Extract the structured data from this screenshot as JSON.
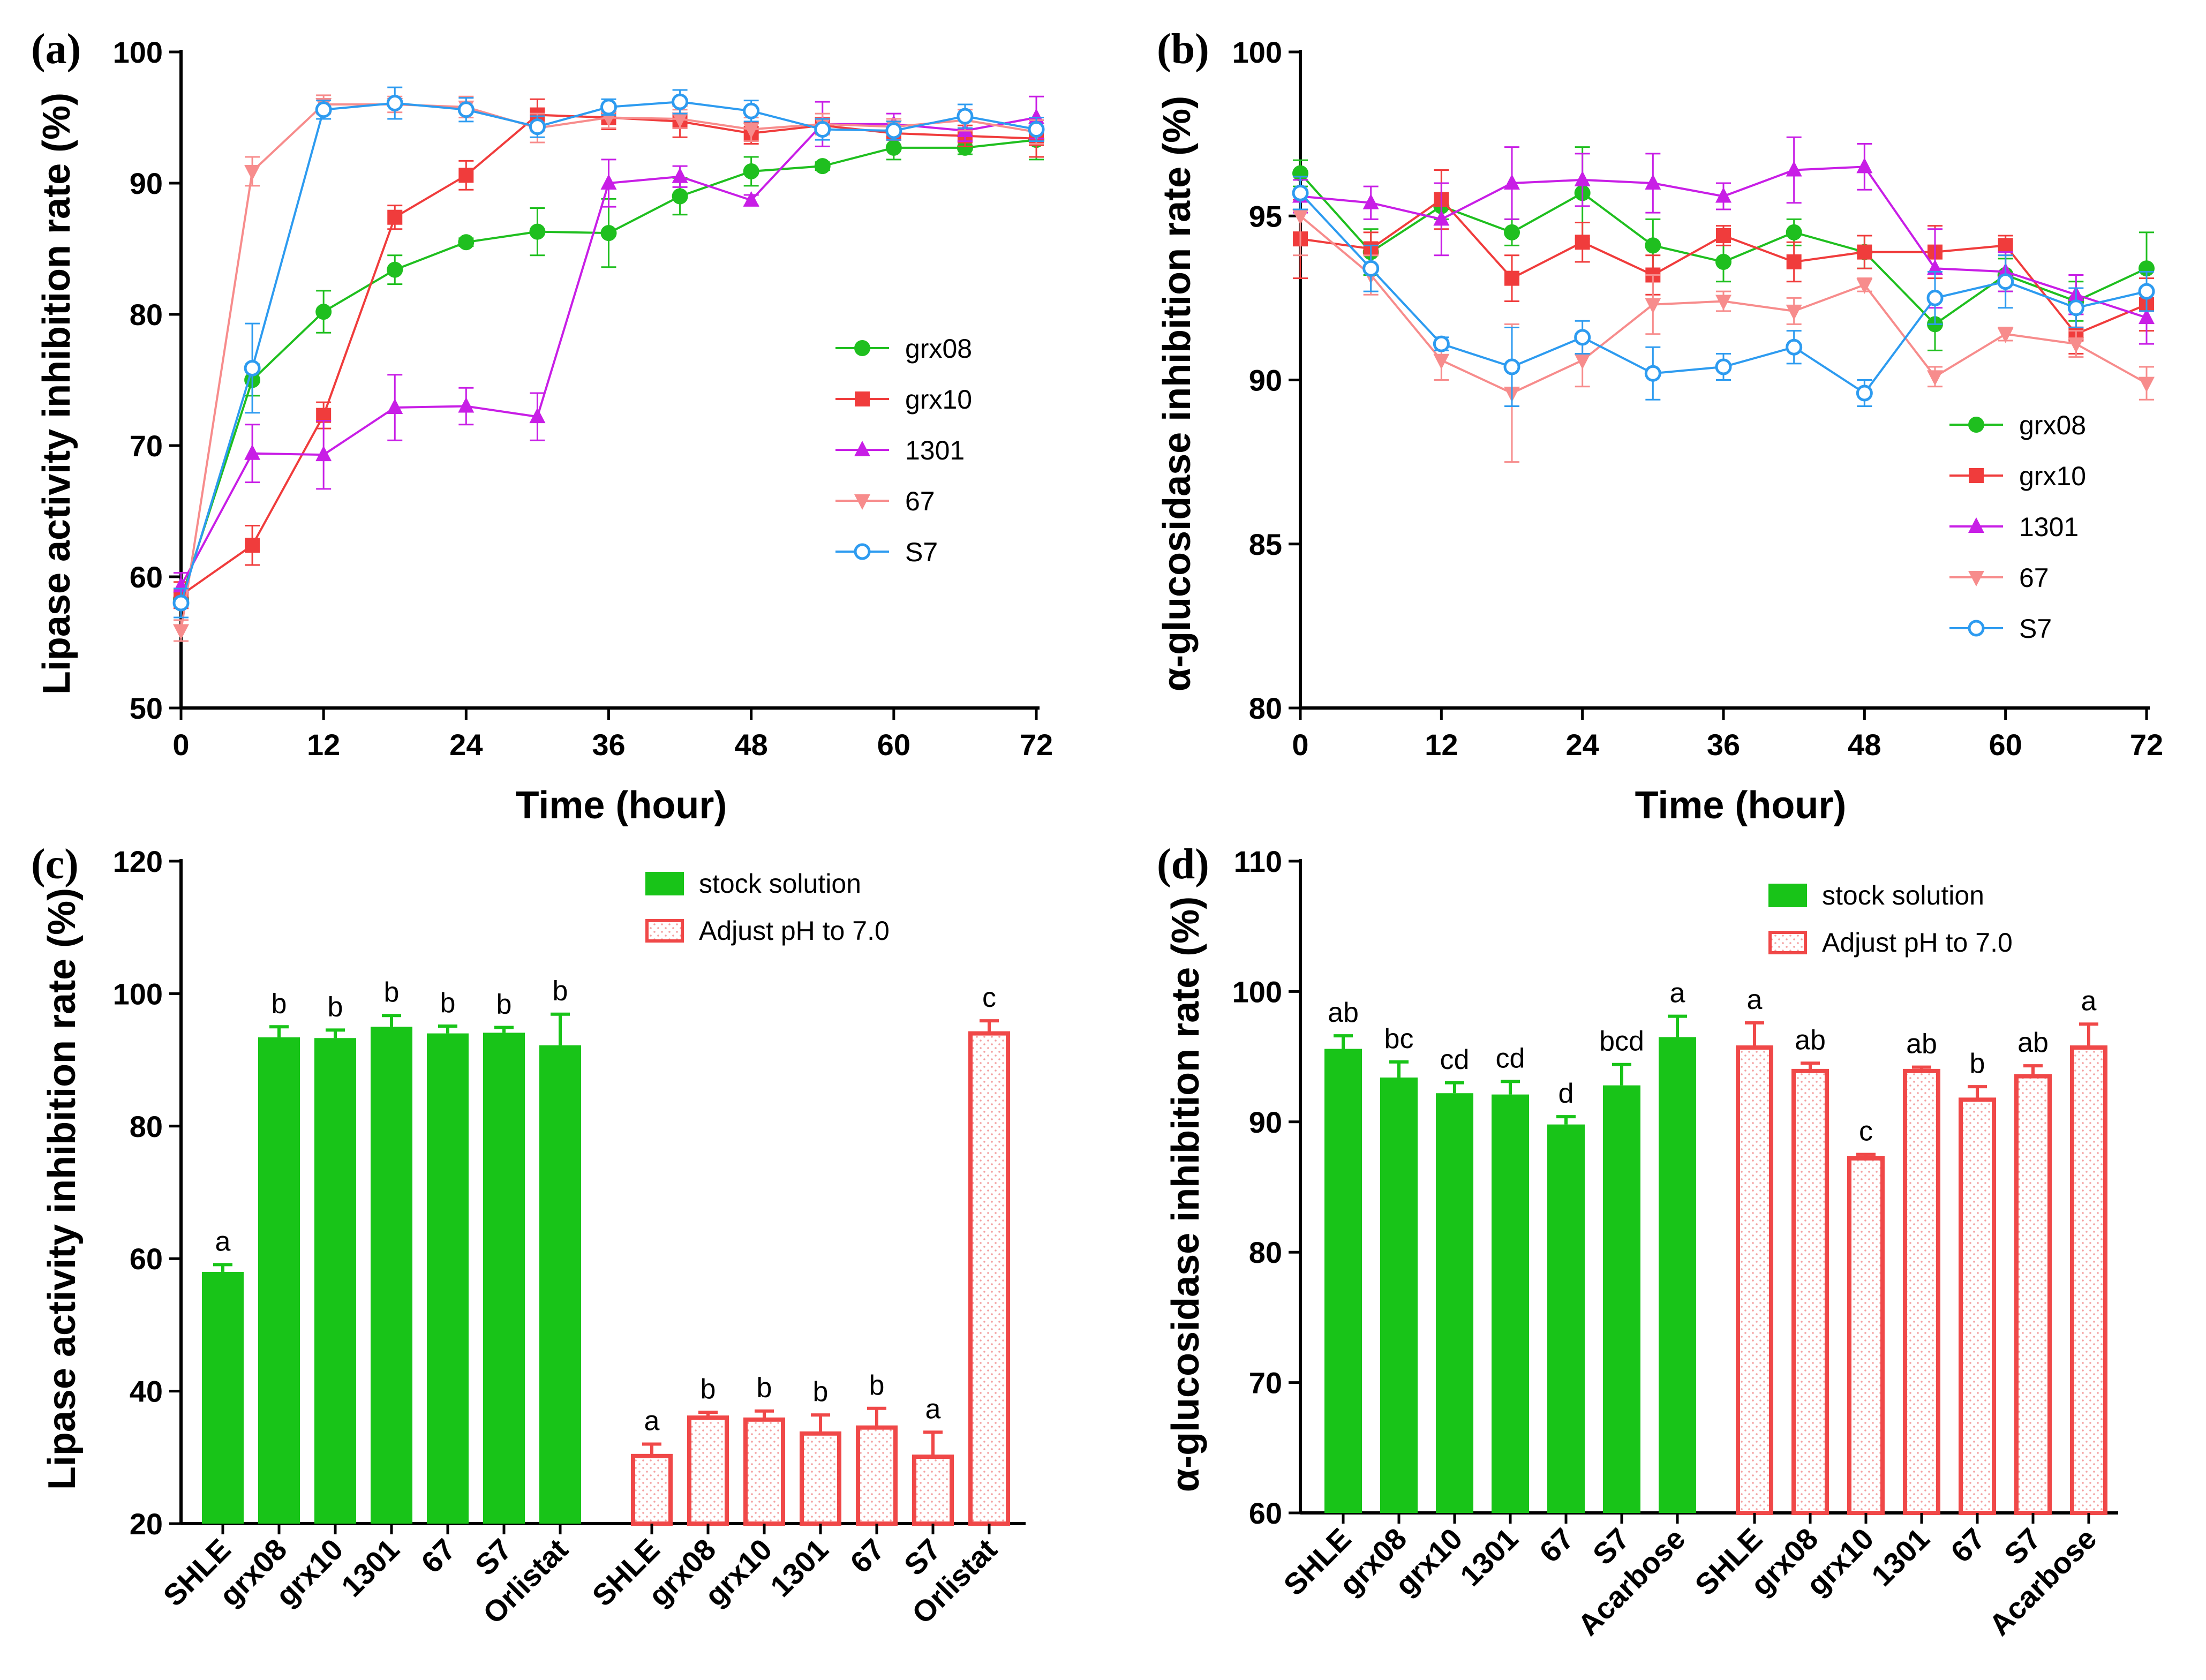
{
  "colors": {
    "grx08": "#1fbf1f",
    "grx10": "#f03c3c",
    "1301": "#c81ee6",
    "67": "#f78c8c",
    "S7": "#2d9bf0",
    "stock": "#18c418",
    "adjust": "#f04848",
    "axis": "#000000"
  },
  "chart_data": [
    {
      "panel": "(a)",
      "type": "line",
      "ylabel": "Lipase activity inhibition rate (%)",
      "xlabel": "Time (hour)",
      "ylim": [
        50,
        100
      ],
      "yticks": [
        50,
        60,
        70,
        80,
        90,
        100
      ],
      "xlim": [
        0,
        72
      ],
      "xticks": [
        0,
        12,
        24,
        36,
        48,
        60,
        72
      ],
      "legend_position": "middle-right",
      "series": [
        {
          "name": "grx08",
          "marker": "circle-filled",
          "x": [
            0,
            6,
            12,
            18,
            24,
            30,
            36,
            42,
            48,
            54,
            60,
            66,
            72
          ],
          "values": [
            58.3,
            75.0,
            80.2,
            83.4,
            85.5,
            86.3,
            86.2,
            89.0,
            90.9,
            91.3,
            92.7,
            92.7,
            93.3
          ],
          "errors": [
            0.5,
            1.2,
            1.6,
            1.1,
            0.3,
            1.8,
            2.6,
            1.4,
            1.1,
            0.3,
            0.9,
            0.5,
            1.5
          ]
        },
        {
          "name": "grx10",
          "marker": "square-filled",
          "x": [
            0,
            6,
            12,
            18,
            24,
            30,
            36,
            42,
            48,
            54,
            60,
            66,
            72
          ],
          "values": [
            58.6,
            62.4,
            72.3,
            87.4,
            90.6,
            95.2,
            95.0,
            94.7,
            93.8,
            94.4,
            93.8,
            93.6,
            93.4
          ],
          "errors": [
            1.0,
            1.5,
            1.0,
            0.9,
            1.1,
            1.2,
            0.9,
            1.2,
            0.8,
            0.6,
            0.5,
            0.8,
            1.4
          ]
        },
        {
          "name": "1301",
          "marker": "triangle-up-filled",
          "x": [
            0,
            6,
            12,
            18,
            24,
            30,
            36,
            42,
            48,
            54,
            60,
            66,
            72
          ],
          "values": [
            59.3,
            69.4,
            69.3,
            72.9,
            73.0,
            72.2,
            90.0,
            90.5,
            88.7,
            94.5,
            94.5,
            94.0,
            95.0
          ],
          "errors": [
            1.0,
            2.2,
            2.6,
            2.5,
            1.4,
            1.8,
            1.8,
            0.8,
            0.4,
            1.7,
            0.8,
            0.8,
            1.6
          ]
        },
        {
          "name": "67",
          "marker": "triangle-down-filled",
          "x": [
            0,
            6,
            12,
            18,
            24,
            30,
            36,
            42,
            48,
            54,
            60,
            66,
            72
          ],
          "values": [
            55.9,
            90.9,
            96.0,
            96.0,
            95.8,
            94.2,
            95.0,
            94.9,
            94.1,
            94.5,
            94.3,
            94.8,
            93.9
          ],
          "errors": [
            0.8,
            1.1,
            0.7,
            0.6,
            0.8,
            1.1,
            0.8,
            0.7,
            0.9,
            0.8,
            0.6,
            0.8,
            0.9
          ]
        },
        {
          "name": "S7",
          "marker": "circle-open",
          "x": [
            0,
            6,
            12,
            18,
            24,
            30,
            36,
            42,
            48,
            54,
            60,
            66,
            72
          ],
          "values": [
            58.0,
            75.9,
            95.6,
            96.1,
            95.6,
            94.3,
            95.8,
            96.2,
            95.5,
            94.1,
            94.0,
            95.1,
            94.1
          ],
          "errors": [
            1.1,
            3.4,
            0.7,
            1.2,
            0.9,
            0.8,
            0.6,
            0.9,
            0.8,
            0.8,
            0.7,
            0.9,
            0.9
          ]
        }
      ]
    },
    {
      "panel": "(b)",
      "type": "line",
      "ylabel": "α-glucosidase inhibition rate (%)",
      "xlabel": "Time (hour)",
      "ylim": [
        80,
        100
      ],
      "yticks": [
        80,
        85,
        90,
        95,
        100
      ],
      "xlim": [
        0,
        72
      ],
      "xticks": [
        0,
        12,
        24,
        36,
        48,
        60,
        72
      ],
      "legend_position": "lower-right",
      "series": [
        {
          "name": "grx08",
          "marker": "circle-filled",
          "x": [
            0,
            6,
            12,
            18,
            24,
            30,
            36,
            42,
            48,
            54,
            60,
            66,
            72
          ],
          "values": [
            96.3,
            93.9,
            95.3,
            94.5,
            95.7,
            94.1,
            93.6,
            94.5,
            93.9,
            91.7,
            93.2,
            92.4,
            93.4
          ],
          "errors": [
            0.4,
            0.7,
            0.4,
            0.4,
            1.4,
            0.8,
            0.6,
            0.4,
            0.5,
            0.8,
            0.5,
            0.6,
            1.1
          ]
        },
        {
          "name": "grx10",
          "marker": "square-filled",
          "x": [
            0,
            6,
            12,
            18,
            24,
            30,
            36,
            42,
            48,
            54,
            60,
            66,
            72
          ],
          "values": [
            94.3,
            94.0,
            95.5,
            93.1,
            94.2,
            93.2,
            94.4,
            93.6,
            93.9,
            93.9,
            94.1,
            91.4,
            92.3
          ],
          "errors": [
            1.2,
            0.5,
            0.9,
            0.7,
            0.6,
            0.6,
            0.3,
            0.6,
            0.5,
            0.8,
            0.3,
            0.6,
            0.8
          ]
        },
        {
          "name": "1301",
          "marker": "triangle-up-filled",
          "x": [
            0,
            6,
            12,
            18,
            24,
            30,
            36,
            42,
            48,
            54,
            60,
            66,
            72
          ],
          "values": [
            95.6,
            95.4,
            94.9,
            96.0,
            96.1,
            96.0,
            95.6,
            96.4,
            96.5,
            93.4,
            93.3,
            92.6,
            91.9
          ],
          "errors": [
            0.5,
            0.5,
            1.1,
            1.1,
            0.8,
            0.9,
            0.4,
            1.0,
            0.7,
            1.2,
            0.6,
            0.6,
            0.8
          ]
        },
        {
          "name": "67",
          "marker": "triangle-down-filled",
          "x": [
            0,
            6,
            12,
            18,
            24,
            30,
            36,
            42,
            48,
            54,
            60,
            66,
            72
          ],
          "values": [
            95.0,
            93.2,
            90.6,
            89.6,
            90.6,
            92.3,
            92.4,
            92.1,
            92.9,
            90.1,
            91.4,
            91.1,
            89.9
          ],
          "errors": [
            1.2,
            0.6,
            0.6,
            2.1,
            0.8,
            0.9,
            0.3,
            0.4,
            0.2,
            0.3,
            0.2,
            0.4,
            0.5
          ]
        },
        {
          "name": "S7",
          "marker": "circle-open",
          "x": [
            0,
            6,
            12,
            18,
            24,
            30,
            36,
            42,
            48,
            54,
            60,
            66,
            72
          ],
          "values": [
            95.7,
            93.4,
            91.1,
            90.4,
            91.3,
            90.2,
            90.4,
            91.0,
            89.6,
            92.5,
            93.0,
            92.2,
            92.7
          ],
          "errors": [
            0.5,
            0.7,
            0.2,
            1.2,
            0.5,
            0.8,
            0.4,
            0.5,
            0.4,
            0.8,
            0.8,
            0.6,
            0.6
          ]
        }
      ]
    },
    {
      "panel": "(c)",
      "type": "bar",
      "ylabel": "Lipase activity inhibition rate (%)",
      "ylim": [
        20,
        120
      ],
      "yticks": [
        20,
        40,
        60,
        80,
        100,
        120
      ],
      "legend_position": "top-right",
      "groups": [
        {
          "name": "stock solution",
          "style": "solid",
          "categories": [
            "SHLE",
            "grx08",
            "grx10",
            "1301",
            "67",
            "S7",
            "Orlistat"
          ],
          "values": [
            58.0,
            93.4,
            93.3,
            95.0,
            94.0,
            94.1,
            92.2
          ],
          "errors": [
            1.1,
            1.6,
            1.2,
            1.7,
            1.1,
            0.8,
            4.7
          ],
          "letters": [
            "a",
            "b",
            "b",
            "b",
            "b",
            "b",
            "b"
          ]
        },
        {
          "name": "Adjust pH to 7.0",
          "style": "dotted-outline",
          "categories": [
            "SHLE",
            "grx08",
            "grx10",
            "1301",
            "67",
            "S7",
            "Orlistat"
          ],
          "values": [
            30.2,
            36.0,
            35.7,
            33.6,
            34.5,
            30.1,
            94.0
          ],
          "errors": [
            1.8,
            0.8,
            1.3,
            2.8,
            2.9,
            3.7,
            1.9
          ],
          "letters": [
            "a",
            "b",
            "b",
            "b",
            "b",
            "a",
            "c"
          ]
        }
      ]
    },
    {
      "panel": "(d)",
      "type": "bar",
      "ylabel": "α-glucosidase inhibition rate (%)",
      "ylim": [
        60,
        110
      ],
      "yticks": [
        60,
        70,
        80,
        90,
        100,
        110
      ],
      "legend_position": "top-right",
      "groups": [
        {
          "name": "stock solution",
          "style": "solid",
          "categories": [
            "SHLE",
            "grx08",
            "grx10",
            "1301",
            "67",
            "S7",
            "Acarbose"
          ],
          "values": [
            95.6,
            93.4,
            92.2,
            92.1,
            89.8,
            92.8,
            96.5
          ],
          "errors": [
            1.0,
            1.2,
            0.8,
            1.0,
            0.6,
            1.6,
            1.6
          ],
          "letters": [
            "ab",
            "bc",
            "cd",
            "cd",
            "d",
            "bcd",
            "a"
          ]
        },
        {
          "name": "Adjust pH to 7.0",
          "style": "dotted-outline",
          "categories": [
            "SHLE",
            "grx08",
            "grx10",
            "1301",
            "67",
            "S7",
            "Acarbose"
          ],
          "values": [
            95.7,
            93.9,
            87.2,
            93.9,
            91.7,
            93.5,
            95.7
          ],
          "errors": [
            1.9,
            0.6,
            0.3,
            0.3,
            1.0,
            0.8,
            1.8
          ],
          "letters": [
            "a",
            "ab",
            "c",
            "ab",
            "b",
            "ab",
            "a"
          ]
        }
      ]
    }
  ]
}
